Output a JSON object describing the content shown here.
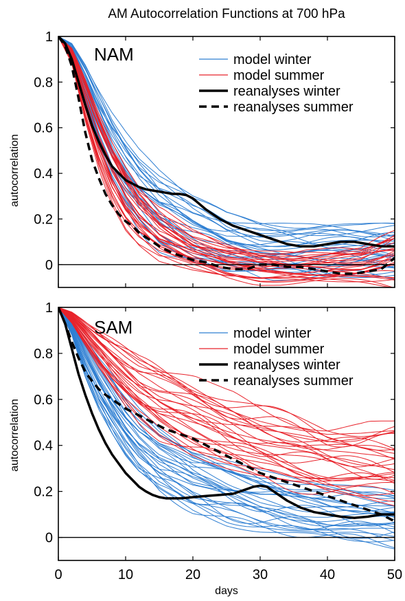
{
  "figure": {
    "title": "AM Autocorrelation Functions at 700 hPa",
    "xlabel": "days"
  },
  "colors": {
    "model_winter": "#2f7fd2",
    "model_summer": "#e8232b",
    "reanalyses": "#000000"
  },
  "chart_data": [
    {
      "type": "line",
      "panel_label": "NAM",
      "ylabel": "autocorrelation",
      "xlim": [
        0,
        50
      ],
      "ylim": [
        -0.1,
        1
      ],
      "xticks": [
        0,
        10,
        20,
        30,
        40,
        50
      ],
      "yticks": [
        0,
        0.2,
        0.4,
        0.6,
        0.8,
        1
      ],
      "ytick_labels": [
        "0",
        "0.2",
        "0.4",
        "0.6",
        "0.8",
        "1"
      ],
      "zero_line": true,
      "legend": [
        {
          "label": "model winter",
          "style": "thin-blue"
        },
        {
          "label": "model summer",
          "style": "thin-red"
        },
        {
          "label": "reanalyses winter",
          "style": "thick-solid"
        },
        {
          "label": "reanalyses summer",
          "style": "thick-dashed"
        }
      ],
      "legend_position": "top-right",
      "ensembles": [
        {
          "name": "model winter",
          "count": 28,
          "envelope": {
            "x": [
              0,
              2,
              4,
              6,
              8,
              10,
              12,
              15,
              20,
              25,
              30,
              35,
              40,
              45,
              50
            ],
            "low": [
              1,
              0.9,
              0.7,
              0.5,
              0.35,
              0.24,
              0.16,
              0.08,
              0.02,
              -0.03,
              -0.05,
              -0.05,
              -0.06,
              -0.05,
              -0.05
            ],
            "high": [
              1,
              0.97,
              0.88,
              0.77,
              0.66,
              0.57,
              0.49,
              0.4,
              0.29,
              0.22,
              0.19,
              0.18,
              0.18,
              0.17,
              0.17
            ]
          }
        },
        {
          "name": "model summer",
          "count": 28,
          "envelope": {
            "x": [
              0,
              2,
              4,
              6,
              8,
              10,
              12,
              15,
              20,
              25,
              30,
              35,
              40,
              45,
              50
            ],
            "low": [
              1,
              0.88,
              0.63,
              0.43,
              0.28,
              0.17,
              0.1,
              0.03,
              -0.02,
              -0.06,
              -0.08,
              -0.08,
              -0.08,
              -0.08,
              -0.09
            ],
            "high": [
              1,
              0.95,
              0.82,
              0.67,
              0.53,
              0.42,
              0.33,
              0.24,
              0.14,
              0.09,
              0.06,
              0.05,
              0.06,
              0.07,
              0.15
            ]
          }
        }
      ],
      "series": [
        {
          "name": "reanalyses winter",
          "style": "thick-solid",
          "x": [
            0,
            1,
            2,
            3,
            4,
            5,
            6,
            7,
            8,
            9,
            10,
            11,
            12,
            13,
            14,
            15,
            16,
            17,
            18,
            19,
            20,
            22,
            24,
            26,
            28,
            30,
            32,
            34,
            36,
            38,
            40,
            42,
            44,
            46,
            48,
            50
          ],
          "y": [
            1,
            0.97,
            0.9,
            0.8,
            0.7,
            0.61,
            0.54,
            0.48,
            0.43,
            0.4,
            0.37,
            0.355,
            0.34,
            0.33,
            0.325,
            0.32,
            0.315,
            0.31,
            0.31,
            0.305,
            0.29,
            0.24,
            0.2,
            0.17,
            0.15,
            0.13,
            0.11,
            0.09,
            0.08,
            0.08,
            0.09,
            0.1,
            0.1,
            0.09,
            0.08,
            0.08
          ]
        },
        {
          "name": "reanalyses summer",
          "style": "thick-dashed",
          "x": [
            0,
            1,
            2,
            3,
            4,
            5,
            6,
            7,
            8,
            9,
            10,
            11,
            12,
            13,
            14,
            15,
            16,
            17,
            18,
            19,
            20,
            22,
            24,
            26,
            28,
            30,
            32,
            34,
            36,
            38,
            40,
            42,
            44,
            46,
            48,
            50
          ],
          "y": [
            1,
            0.96,
            0.87,
            0.73,
            0.58,
            0.46,
            0.38,
            0.31,
            0.26,
            0.22,
            0.19,
            0.17,
            0.14,
            0.12,
            0.1,
            0.08,
            0.065,
            0.05,
            0.04,
            0.03,
            0.02,
            0.01,
            -0.01,
            -0.02,
            -0.02,
            0.0,
            0.0,
            -0.01,
            -0.01,
            -0.02,
            -0.03,
            -0.04,
            -0.04,
            -0.03,
            -0.02,
            0.03
          ]
        }
      ]
    },
    {
      "type": "line",
      "panel_label": "SAM",
      "ylabel": "autocorrelation",
      "xlabel": "days",
      "xlim": [
        0,
        50
      ],
      "ylim": [
        -0.1,
        1
      ],
      "xticks": [
        0,
        10,
        20,
        30,
        40,
        50
      ],
      "yticks": [
        0,
        0.2,
        0.4,
        0.6,
        0.8,
        1
      ],
      "ytick_labels": [
        "0",
        "0.2",
        "0.4",
        "0.6",
        "0.8",
        "1"
      ],
      "zero_line": true,
      "legend": [
        {
          "label": "model winter",
          "style": "thin-blue"
        },
        {
          "label": "model summer",
          "style": "thin-red"
        },
        {
          "label": "reanalyses winter",
          "style": "thick-solid"
        },
        {
          "label": "reanalyses summer",
          "style": "thick-dashed"
        }
      ],
      "legend_position": "top-right",
      "ensembles": [
        {
          "name": "model winter",
          "count": 28,
          "envelope": {
            "x": [
              0,
              2,
              4,
              6,
              8,
              10,
              12,
              15,
              20,
              25,
              30,
              35,
              40,
              45,
              50
            ],
            "low": [
              1,
              0.88,
              0.7,
              0.56,
              0.45,
              0.35,
              0.27,
              0.19,
              0.11,
              0.06,
              0.03,
              0.01,
              -0.01,
              -0.02,
              -0.04
            ],
            "high": [
              1,
              0.95,
              0.87,
              0.78,
              0.7,
              0.62,
              0.55,
              0.47,
              0.38,
              0.33,
              0.28,
              0.25,
              0.23,
              0.21,
              0.2
            ]
          }
        },
        {
          "name": "model summer",
          "count": 28,
          "envelope": {
            "x": [
              0,
              2,
              4,
              6,
              8,
              10,
              12,
              15,
              20,
              25,
              30,
              35,
              40,
              45,
              50
            ],
            "low": [
              1,
              0.93,
              0.83,
              0.73,
              0.64,
              0.57,
              0.51,
              0.44,
              0.37,
              0.31,
              0.26,
              0.22,
              0.19,
              0.17,
              0.15
            ],
            "high": [
              1,
              0.98,
              0.94,
              0.9,
              0.86,
              0.82,
              0.78,
              0.74,
              0.68,
              0.62,
              0.57,
              0.53,
              0.49,
              0.48,
              0.48
            ]
          }
        }
      ],
      "series": [
        {
          "name": "reanalyses winter",
          "style": "thick-solid",
          "x": [
            0,
            1,
            2,
            3,
            4,
            5,
            6,
            7,
            8,
            9,
            10,
            11,
            12,
            13,
            14,
            15,
            16,
            17,
            18,
            19,
            20,
            22,
            24,
            26,
            28,
            29,
            30,
            31,
            32,
            34,
            36,
            38,
            40,
            42,
            44,
            46,
            48,
            50
          ],
          "y": [
            1,
            0.93,
            0.82,
            0.71,
            0.62,
            0.54,
            0.47,
            0.41,
            0.36,
            0.32,
            0.28,
            0.25,
            0.22,
            0.2,
            0.185,
            0.175,
            0.17,
            0.17,
            0.17,
            0.172,
            0.175,
            0.18,
            0.185,
            0.19,
            0.21,
            0.22,
            0.225,
            0.22,
            0.2,
            0.16,
            0.13,
            0.11,
            0.1,
            0.09,
            0.085,
            0.09,
            0.1,
            0.1
          ]
        },
        {
          "name": "reanalyses summer",
          "style": "thick-dashed",
          "x": [
            0,
            1,
            2,
            3,
            4,
            5,
            6,
            7,
            8,
            9,
            10,
            12,
            14,
            16,
            18,
            20,
            22,
            24,
            26,
            28,
            30,
            32,
            34,
            36,
            38,
            40,
            42,
            44,
            46,
            48,
            50
          ],
          "y": [
            1,
            0.93,
            0.85,
            0.78,
            0.72,
            0.68,
            0.645,
            0.62,
            0.6,
            0.58,
            0.56,
            0.53,
            0.5,
            0.47,
            0.45,
            0.43,
            0.4,
            0.37,
            0.34,
            0.31,
            0.28,
            0.26,
            0.24,
            0.22,
            0.2,
            0.18,
            0.16,
            0.14,
            0.12,
            0.1,
            0.07
          ]
        }
      ]
    }
  ]
}
